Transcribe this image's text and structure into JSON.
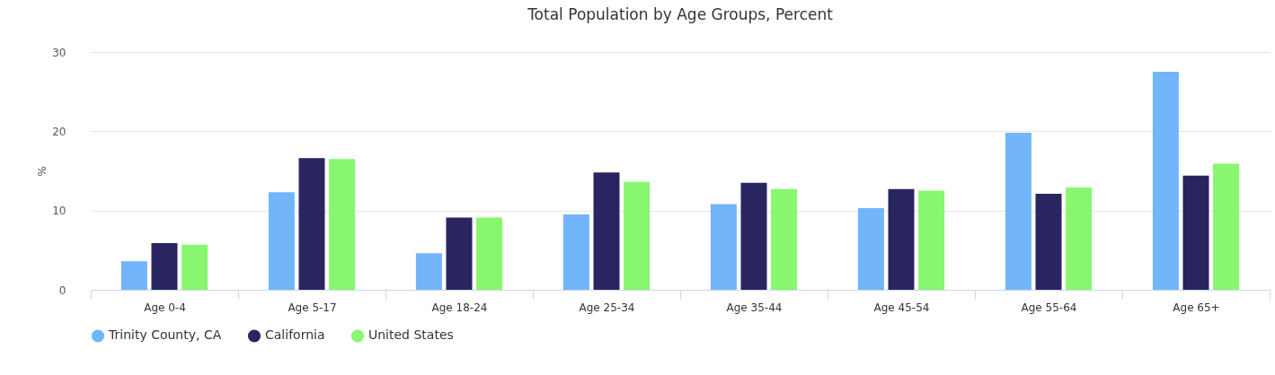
{
  "chart_data": {
    "type": "bar",
    "title": "Total Population by Age Groups, Percent",
    "ylabel": "%",
    "categories": [
      "Age 0-4",
      "Age 5-17",
      "Age 18-24",
      "Age 25-34",
      "Age 35-44",
      "Age 45-54",
      "Age 55-64",
      "Age 65+"
    ],
    "series": [
      {
        "name": "Trinity County, CA",
        "color": "#72b5fa",
        "values": [
          3.6,
          12.3,
          4.6,
          9.5,
          10.8,
          10.3,
          19.8,
          27.5
        ]
      },
      {
        "name": "California",
        "color": "#282561",
        "values": [
          5.9,
          16.6,
          9.1,
          14.8,
          13.5,
          12.7,
          12.1,
          14.4
        ]
      },
      {
        "name": "United States",
        "color": "#88f76f",
        "values": [
          5.7,
          16.5,
          9.1,
          13.6,
          12.7,
          12.5,
          12.9,
          15.9
        ]
      }
    ],
    "ylim": [
      0,
      30
    ],
    "yticks": [
      0,
      10,
      20,
      30
    ],
    "grid": "y",
    "legend": "bottom"
  }
}
